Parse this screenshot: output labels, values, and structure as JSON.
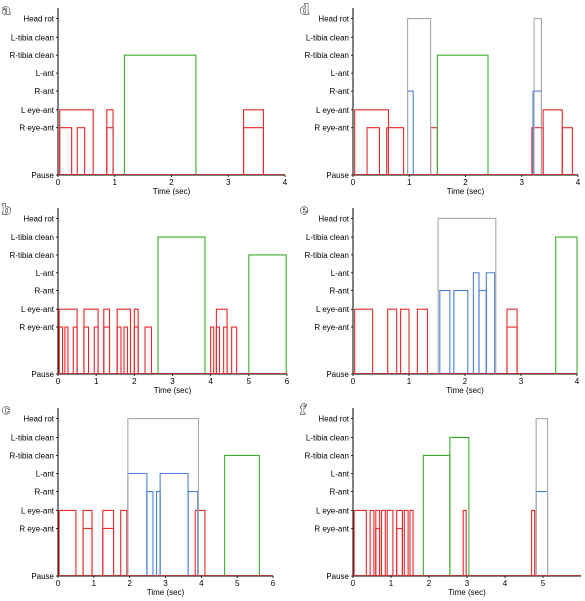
{
  "figure": {
    "colors": {
      "eye": "#e8282b",
      "ant": "#4a7fd4",
      "tibia": "#3aac2a",
      "head": "#a8a8a8",
      "axis": "#000000"
    }
  },
  "chart_data": [
    {
      "type": "line",
      "panel": "a",
      "xlabel": "Time (sec)",
      "xlim": [
        0,
        4
      ],
      "xticks": [
        "0",
        "1",
        "2",
        "3",
        "4"
      ],
      "ytick_labels": [
        "Head rot",
        "L-tibia clean",
        "R-tibia clean",
        "L-ant",
        "R-ant",
        "L eye-ant",
        "R eye-ant",
        "Pause"
      ],
      "series": [
        {
          "color": "red",
          "level": "L eye-ant",
          "bouts": [
            [
              0.03,
              0.62
            ],
            [
              0.86,
              0.97
            ],
            [
              3.27,
              3.62
            ]
          ]
        },
        {
          "color": "red",
          "level": "R eye-ant",
          "bouts": [
            [
              0.03,
              0.24
            ],
            [
              0.34,
              0.47
            ],
            [
              0.86,
              0.97
            ],
            [
              3.27,
              3.62
            ]
          ]
        },
        {
          "color": "green",
          "level": "R-tibia clean",
          "bouts": [
            [
              1.17,
              2.43
            ]
          ]
        }
      ]
    },
    {
      "type": "line",
      "panel": "b",
      "xlabel": "Time (sec)",
      "xlim": [
        0,
        6
      ],
      "xticks": [
        "0",
        "1",
        "2",
        "3",
        "4",
        "5",
        "6"
      ],
      "ytick_labels": [
        "Head rot",
        "L-tibia clean",
        "R-tibia clean",
        "L-ant",
        "R-ant",
        "L eye-ant",
        "R eye-ant",
        "Pause"
      ],
      "series": [
        {
          "color": "red",
          "level": "L eye-ant",
          "bouts": [
            [
              0.03,
              0.5
            ],
            [
              0.68,
              1.05
            ],
            [
              1.2,
              1.35
            ],
            [
              1.55,
              1.9
            ],
            [
              2.0,
              2.1
            ],
            [
              4.15,
              4.43
            ]
          ]
        },
        {
          "color": "red",
          "level": "R eye-ant",
          "bouts": [
            [
              0.03,
              0.12
            ],
            [
              0.18,
              0.26
            ],
            [
              0.4,
              0.5
            ],
            [
              0.68,
              0.8
            ],
            [
              0.95,
              1.05
            ],
            [
              1.2,
              1.35
            ],
            [
              1.55,
              1.65
            ],
            [
              1.73,
              1.82
            ],
            [
              2.0,
              2.1
            ],
            [
              2.28,
              2.45
            ],
            [
              4.0,
              4.08
            ],
            [
              4.15,
              4.23
            ],
            [
              4.34,
              4.43
            ],
            [
              4.55,
              4.68
            ]
          ]
        },
        {
          "color": "green",
          "level": "L-tibia clean",
          "bouts": [
            [
              2.62,
              3.85
            ]
          ]
        },
        {
          "color": "green",
          "level": "R-tibia clean",
          "bouts": [
            [
              5.0,
              5.98
            ]
          ]
        }
      ]
    },
    {
      "type": "line",
      "panel": "c",
      "xlabel": "Time (sec)",
      "xlim": [
        0,
        6
      ],
      "xticks": [
        "0",
        "1",
        "2",
        "3",
        "4",
        "5",
        "6"
      ],
      "ytick_labels": [
        "Head rot",
        "L-tibia clean",
        "R-tibia clean",
        "L-ant",
        "R-ant",
        "L eye-ant",
        "R eye-ant",
        "Pause"
      ],
      "series": [
        {
          "color": "red",
          "level": "L eye-ant",
          "bouts": [
            [
              0.03,
              0.5
            ],
            [
              0.7,
              0.95
            ],
            [
              1.25,
              1.55
            ],
            [
              1.75,
              1.92
            ],
            [
              3.83,
              4.1
            ]
          ]
        },
        {
          "color": "red",
          "level": "R eye-ant",
          "bouts": [
            [
              0.7,
              0.95
            ],
            [
              1.25,
              1.55
            ]
          ]
        },
        {
          "color": "blue",
          "level": "L-ant",
          "bouts": [
            [
              1.95,
              2.48
            ],
            [
              2.85,
              3.63
            ]
          ]
        },
        {
          "color": "blue",
          "level": "R-ant",
          "bouts": [
            [
              2.48,
              2.65
            ],
            [
              2.75,
              2.85
            ],
            [
              3.63,
              3.9
            ]
          ]
        },
        {
          "color": "gray",
          "level": "Head rot",
          "bouts": [
            [
              1.95,
              3.92
            ]
          ]
        },
        {
          "color": "green",
          "level": "R-tibia clean",
          "bouts": [
            [
              4.65,
              5.62
            ]
          ]
        }
      ]
    },
    {
      "type": "line",
      "panel": "d",
      "xlabel": "Time (sec)",
      "xlim": [
        0,
        4
      ],
      "xticks": [
        "0",
        "1",
        "2",
        "3",
        "4"
      ],
      "ytick_labels": [
        "Head rot",
        "L-tibia clean",
        "R-tibia clean",
        "L-ant",
        "R-ant",
        "L eye-ant",
        "R eye-ant",
        "Pause"
      ],
      "series": [
        {
          "color": "red",
          "level": "L eye-ant",
          "bouts": [
            [
              0.03,
              0.63
            ],
            [
              3.38,
              3.72
            ]
          ]
        },
        {
          "color": "red",
          "level": "R eye-ant",
          "bouts": [
            [
              0.25,
              0.47
            ],
            [
              0.6,
              0.9
            ],
            [
              1.38,
              1.5
            ],
            [
              3.18,
              3.38
            ],
            [
              3.72,
              3.9
            ]
          ]
        },
        {
          "color": "blue",
          "level": "R-ant",
          "bouts": [
            [
              0.97,
              1.07
            ],
            [
              3.2,
              3.35
            ]
          ]
        },
        {
          "color": "gray",
          "level": "Head rot",
          "bouts": [
            [
              0.97,
              1.38
            ],
            [
              3.22,
              3.35
            ]
          ]
        },
        {
          "color": "green",
          "level": "R-tibia clean",
          "bouts": [
            [
              1.5,
              2.4
            ]
          ]
        }
      ]
    },
    {
      "type": "line",
      "panel": "e",
      "xlabel": "Time (sec)",
      "xlim": [
        0,
        4
      ],
      "xticks": [
        "0",
        "1",
        "2",
        "3",
        "4"
      ],
      "ytick_labels": [
        "Head rot",
        "L-tibia clean",
        "R-tibia clean",
        "L-ant",
        "R-ant",
        "L eye-ant",
        "R eye-ant",
        "Pause"
      ],
      "series": [
        {
          "color": "red",
          "level": "L eye-ant",
          "bouts": [
            [
              0.03,
              0.35
            ],
            [
              0.62,
              0.78
            ],
            [
              0.85,
              1.0
            ],
            [
              1.15,
              1.33
            ],
            [
              2.75,
              2.93
            ]
          ]
        },
        {
          "color": "red",
          "level": "R eye-ant",
          "bouts": [
            [
              2.75,
              2.93
            ]
          ]
        },
        {
          "color": "blue",
          "level": "L-ant",
          "bouts": [
            [
              2.15,
              2.25
            ],
            [
              2.38,
              2.53
            ]
          ]
        },
        {
          "color": "blue",
          "level": "R-ant",
          "bouts": [
            [
              1.55,
              1.73
            ],
            [
              1.8,
              2.05
            ],
            [
              2.25,
              2.38
            ]
          ]
        },
        {
          "color": "gray",
          "level": "Head rot",
          "bouts": [
            [
              1.52,
              2.55
            ]
          ]
        },
        {
          "color": "green",
          "level": "L-tibia clean",
          "bouts": [
            [
              3.62,
              4.0
            ]
          ]
        }
      ]
    },
    {
      "type": "line",
      "panel": "f",
      "xlabel": "Time (sec)",
      "xlim": [
        0,
        6
      ],
      "xticks": [
        "0",
        "1",
        "2",
        "3",
        "4",
        "5"
      ],
      "ytick_labels": [
        "Head rot",
        "L-tibia clean",
        "R-tibia clean",
        "L-ant",
        "R-ant",
        "L eye-ant",
        "R eye-ant",
        "Pause"
      ],
      "series": [
        {
          "color": "red",
          "level": "L eye-ant",
          "bouts": [
            [
              0.03,
              0.35
            ],
            [
              0.45,
              0.55
            ],
            [
              0.6,
              0.7
            ],
            [
              0.75,
              0.85
            ],
            [
              0.9,
              1.05
            ],
            [
              1.15,
              1.3
            ],
            [
              1.35,
              1.45
            ],
            [
              1.5,
              1.58
            ],
            [
              2.9,
              2.98
            ],
            [
              4.7,
              4.78
            ]
          ]
        },
        {
          "color": "red",
          "level": "R eye-ant",
          "bouts": [
            [
              0.6,
              0.7
            ],
            [
              1.15,
              1.3
            ]
          ]
        },
        {
          "color": "green",
          "level": "R-tibia clean",
          "bouts": [
            [
              1.85,
              2.55
            ]
          ]
        },
        {
          "color": "green",
          "level": "L-tibia clean",
          "bouts": [
            [
              2.55,
              3.05
            ]
          ]
        },
        {
          "color": "blue",
          "level": "R-ant",
          "bouts": [
            [
              4.82,
              5.12
            ]
          ]
        },
        {
          "color": "gray",
          "level": "Head rot",
          "bouts": [
            [
              4.82,
              5.12
            ]
          ]
        }
      ]
    }
  ]
}
